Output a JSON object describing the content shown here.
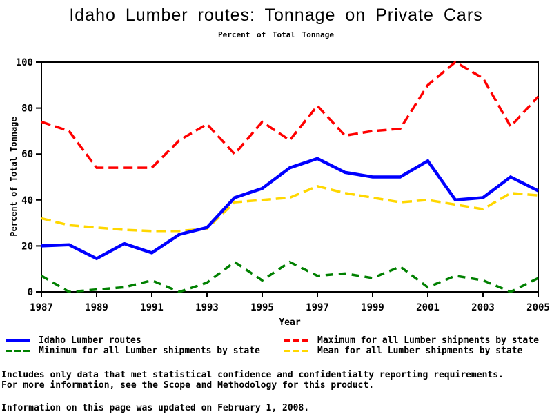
{
  "page": {
    "title": "Idaho Lumber routes: Tonnage on Private Cars",
    "subtitle": "Percent of Total Tonnage"
  },
  "chart_data": {
    "type": "line",
    "title": "Idaho Lumber routes: Tonnage on Private Cars",
    "subtitle": "Percent of Total Tonnage",
    "xlabel": "Year",
    "ylabel": "Percent of Total Tonnage",
    "xlim": [
      1987,
      2005
    ],
    "ylim": [
      0,
      100
    ],
    "x_ticks": [
      1987,
      1989,
      1991,
      1993,
      1995,
      1997,
      1999,
      2001,
      2003,
      2005
    ],
    "y_ticks": [
      0,
      20,
      40,
      60,
      80,
      100
    ],
    "grid": false,
    "legend_position": "bottom",
    "x": [
      1987,
      1988,
      1989,
      1990,
      1991,
      1992,
      1993,
      1994,
      1995,
      1996,
      1997,
      1998,
      1999,
      2000,
      2001,
      2002,
      2003,
      2004,
      2005
    ],
    "series": [
      {
        "name": "Idaho Lumber routes",
        "color": "#0000ff",
        "dash": "",
        "width": 4.5,
        "values": [
          20,
          20.5,
          14.5,
          21,
          17,
          25,
          28,
          41,
          45,
          54,
          58,
          52,
          50,
          50,
          57,
          40,
          41,
          50,
          44
        ]
      },
      {
        "name": "Maximum for all Lumber shipments by state",
        "color": "#ff0000",
        "dash": "14,7",
        "width": 3.5,
        "values": [
          74,
          70,
          54,
          54,
          54,
          66,
          73,
          60,
          74,
          66,
          81,
          68,
          70,
          71,
          90,
          100,
          93,
          72,
          85
        ]
      },
      {
        "name": "Minimum for all Lumber shipments by state",
        "color": "#008000",
        "dash": "11,8",
        "width": 3.5,
        "values": [
          7,
          0,
          1,
          2,
          5,
          0,
          4,
          13,
          5,
          13,
          7,
          8,
          6,
          11,
          2,
          7,
          5,
          0,
          6
        ]
      },
      {
        "name": "Mean for all Lumber shipments by state",
        "color": "#ffd700",
        "dash": "14,7",
        "width": 3.5,
        "values": [
          32,
          29,
          28,
          27,
          26.5,
          26.5,
          27.5,
          39,
          40,
          41,
          46,
          43,
          41,
          39,
          40,
          38,
          36,
          43,
          42
        ]
      }
    ]
  },
  "legend": {
    "items": [
      {
        "label": "Idaho Lumber routes",
        "color": "#0000ff",
        "dashed": false
      },
      {
        "label": "Minimum for all Lumber shipments by state",
        "color": "#008000",
        "dashed": true
      },
      {
        "label": "Maximum for all Lumber shipments by state",
        "color": "#ff0000",
        "dashed": true
      },
      {
        "label": "Mean for all Lumber shipments by state",
        "color": "#ffd700",
        "dashed": true
      }
    ]
  },
  "footnotes": {
    "line1": "Includes only data that met statistical confidence and confidentialty reporting requirements.",
    "line2": "For more information, see the Scope and Methodology for this product.",
    "update_note": "Information on this page was updated on February 1, 2008."
  }
}
